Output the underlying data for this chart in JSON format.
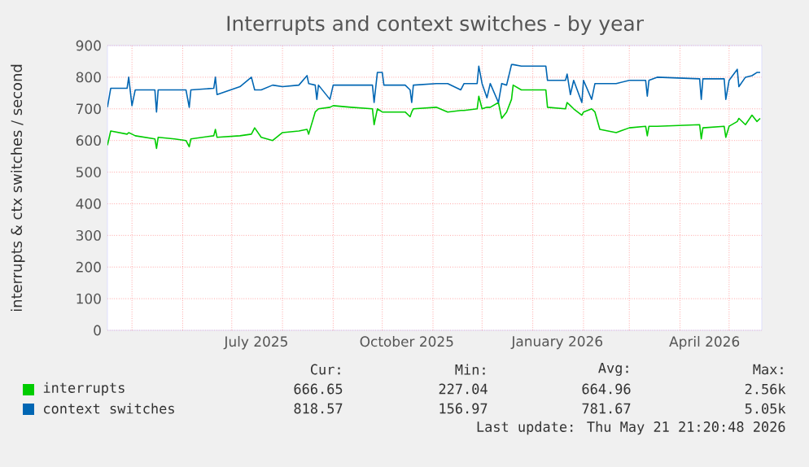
{
  "chart_data": {
    "type": "line",
    "title": "Interrupts and context switches - by year",
    "ylabel": "interrupts & ctx switches / second",
    "x": [
      "2025-04-16",
      "2025-04-18",
      "2025-04-28",
      "2025-04-29",
      "2025-05-01",
      "2025-05-03",
      "2025-05-15",
      "2025-05-16",
      "2025-05-17",
      "2025-05-27",
      "2025-06-03",
      "2025-06-05",
      "2025-06-06",
      "2025-06-20",
      "2025-06-21",
      "2025-06-22",
      "2025-07-06",
      "2025-07-13",
      "2025-07-15",
      "2025-07-19",
      "2025-07-26",
      "2025-08-01",
      "2025-08-11",
      "2025-08-16",
      "2025-08-17",
      "2025-08-21",
      "2025-08-22",
      "2025-08-23",
      "2025-08-30",
      "2025-09-01",
      "2025-09-12",
      "2025-09-25",
      "2025-09-26",
      "2025-09-28",
      "2025-10-01",
      "2025-10-02",
      "2025-10-15",
      "2025-10-18",
      "2025-10-19",
      "2025-10-20",
      "2025-11-03",
      "2025-11-10",
      "2025-11-18",
      "2025-11-20",
      "2025-11-28",
      "2025-11-29",
      "2025-12-01",
      "2025-12-04",
      "2025-12-06",
      "2025-12-11",
      "2025-12-13",
      "2025-12-16",
      "2025-12-19",
      "2025-12-20",
      "2025-12-25",
      "2026-01-09",
      "2026-01-10",
      "2026-01-21",
      "2026-01-22",
      "2026-01-24",
      "2026-01-26",
      "2026-01-31",
      "2026-02-01",
      "2026-02-06",
      "2026-02-08",
      "2026-02-11",
      "2026-02-21",
      "2026-03-01",
      "2026-03-11",
      "2026-03-12",
      "2026-03-13",
      "2026-03-18",
      "2026-04-13",
      "2026-04-14",
      "2026-04-15",
      "2026-04-28",
      "2026-04-29",
      "2026-05-01",
      "2026-05-06",
      "2026-05-07",
      "2026-05-11",
      "2026-05-15",
      "2026-05-18",
      "2026-05-20"
    ],
    "series": [
      {
        "name": "interrupts",
        "color": "#00cc00",
        "values": [
          585,
          630,
          620,
          625,
          620,
          615,
          605,
          575,
          610,
          605,
          600,
          580,
          605,
          615,
          635,
          610,
          615,
          620,
          640,
          610,
          600,
          625,
          630,
          635,
          620,
          690,
          695,
          700,
          705,
          710,
          705,
          700,
          650,
          700,
          690,
          690,
          690,
          675,
          690,
          700,
          705,
          690,
          695,
          695,
          700,
          740,
          700,
          705,
          705,
          720,
          670,
          690,
          730,
          775,
          760,
          760,
          705,
          700,
          720,
          710,
          700,
          680,
          690,
          700,
          690,
          635,
          625,
          640,
          645,
          615,
          645,
          645,
          650,
          605,
          640,
          645,
          610,
          645,
          660,
          670,
          650,
          680,
          660,
          670
        ]
      },
      {
        "name": "context switches",
        "color": "#0066b3",
        "values": [
          705,
          765,
          765,
          800,
          710,
          760,
          760,
          690,
          760,
          760,
          760,
          705,
          760,
          765,
          800,
          745,
          770,
          800,
          760,
          760,
          775,
          770,
          775,
          805,
          780,
          775,
          730,
          775,
          730,
          775,
          775,
          775,
          720,
          815,
          815,
          775,
          775,
          760,
          720,
          775,
          780,
          780,
          760,
          780,
          780,
          835,
          780,
          735,
          780,
          720,
          780,
          775,
          840,
          840,
          835,
          835,
          790,
          790,
          810,
          745,
          790,
          720,
          790,
          730,
          780,
          780,
          780,
          790,
          790,
          740,
          790,
          800,
          795,
          730,
          795,
          795,
          730,
          790,
          825,
          770,
          800,
          805,
          815,
          815
        ]
      }
    ],
    "xlim": [
      "2025-04-16",
      "2026-05-21"
    ],
    "xticks": [
      {
        "value": "2025-05-01",
        "label": null
      },
      {
        "value": "2025-06-01",
        "label": null
      },
      {
        "value": "2025-07-01",
        "label": null
      },
      {
        "value": "2025-07-16",
        "label": "July 2025"
      },
      {
        "value": "2025-08-01",
        "label": null
      },
      {
        "value": "2025-09-01",
        "label": null
      },
      {
        "value": "2025-10-01",
        "label": null
      },
      {
        "value": "2025-10-16",
        "label": "October 2025"
      },
      {
        "value": "2025-11-01",
        "label": null
      },
      {
        "value": "2025-12-01",
        "label": null
      },
      {
        "value": "2026-01-01",
        "label": null
      },
      {
        "value": "2026-01-16",
        "label": "January 2026"
      },
      {
        "value": "2026-02-01",
        "label": null
      },
      {
        "value": "2026-03-01",
        "label": null
      },
      {
        "value": "2026-04-01",
        "label": null
      },
      {
        "value": "2026-04-16",
        "label": "April 2026"
      },
      {
        "value": "2026-05-01",
        "label": null
      }
    ],
    "ylim": [
      0,
      900
    ],
    "yticks": [
      0,
      100,
      200,
      300,
      400,
      500,
      600,
      700,
      800,
      900
    ],
    "grid": true,
    "legend": "bottom",
    "annotations": [
      "Cur:",
      "Min:",
      "Avg:",
      "Max:",
      "666.65",
      "227.04",
      "664.96",
      "2.56k",
      "818.57",
      "156.97",
      "781.67",
      "5.05k",
      "Last update: Thu May 21 21:20:48 2026"
    ]
  }
}
